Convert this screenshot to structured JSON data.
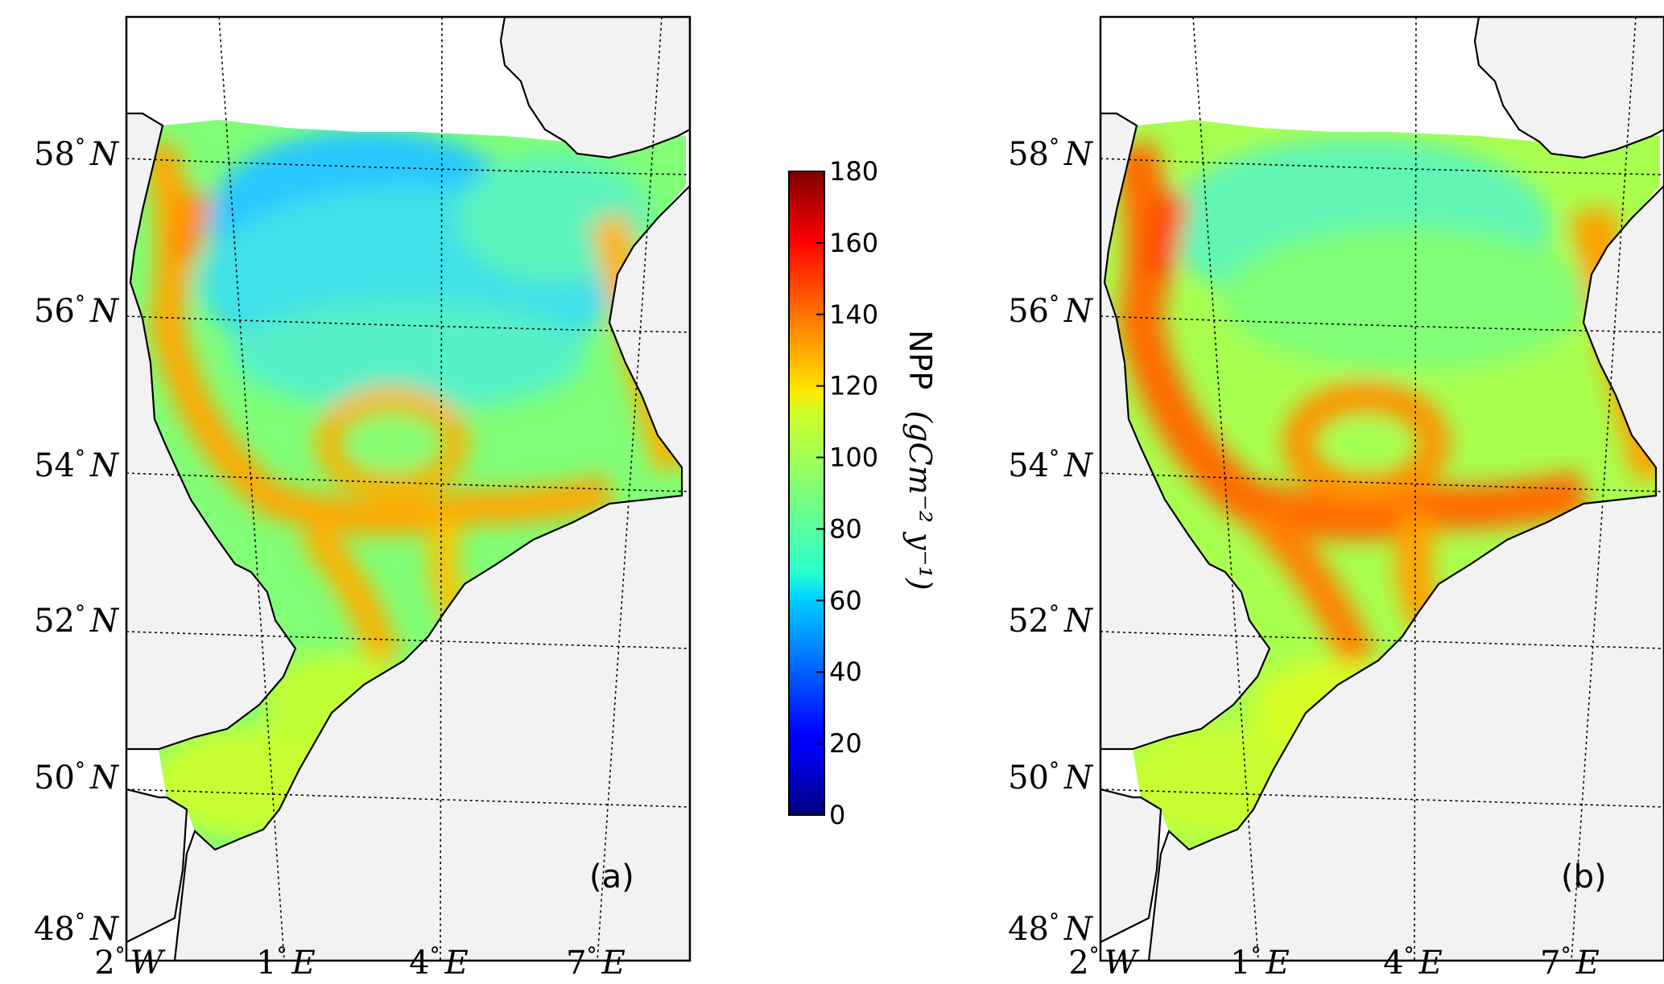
{
  "figure": {
    "panels": [
      {
        "id": "a",
        "label": "(a)"
      },
      {
        "id": "b",
        "label": "(b)"
      }
    ],
    "latitude_labels": [
      {
        "value": 58,
        "deg": "58",
        "sym": "°",
        "hemi": "N"
      },
      {
        "value": 56,
        "deg": "56",
        "sym": "°",
        "hemi": "N"
      },
      {
        "value": 54,
        "deg": "54",
        "sym": "°",
        "hemi": "N"
      },
      {
        "value": 52,
        "deg": "52",
        "sym": "°",
        "hemi": "N"
      },
      {
        "value": 50,
        "deg": "50",
        "sym": "°",
        "hemi": "N"
      },
      {
        "value": 48,
        "deg": "48",
        "sym": "°",
        "hemi": "N"
      }
    ],
    "longitude_labels": [
      {
        "value": -2,
        "deg": "2",
        "sym": "°",
        "hemi": "W"
      },
      {
        "value": 1,
        "deg": "1",
        "sym": "°",
        "hemi": "E"
      },
      {
        "value": 4,
        "deg": "4",
        "sym": "°",
        "hemi": "E"
      },
      {
        "value": 7,
        "deg": "7",
        "sym": "°",
        "hemi": "E"
      }
    ],
    "colorbar": {
      "label_text": "NPP",
      "label_unit": "(gCm⁻² y⁻¹)",
      "min": 0,
      "max": 180,
      "ticks": [
        "0",
        "20",
        "40",
        "60",
        "80",
        "100",
        "120",
        "140",
        "160",
        "180"
      ],
      "colormap": "jet"
    },
    "colors": {
      "land": "#f2f2f2",
      "graticule": "#000000",
      "coastline": "#000000"
    }
  }
}
